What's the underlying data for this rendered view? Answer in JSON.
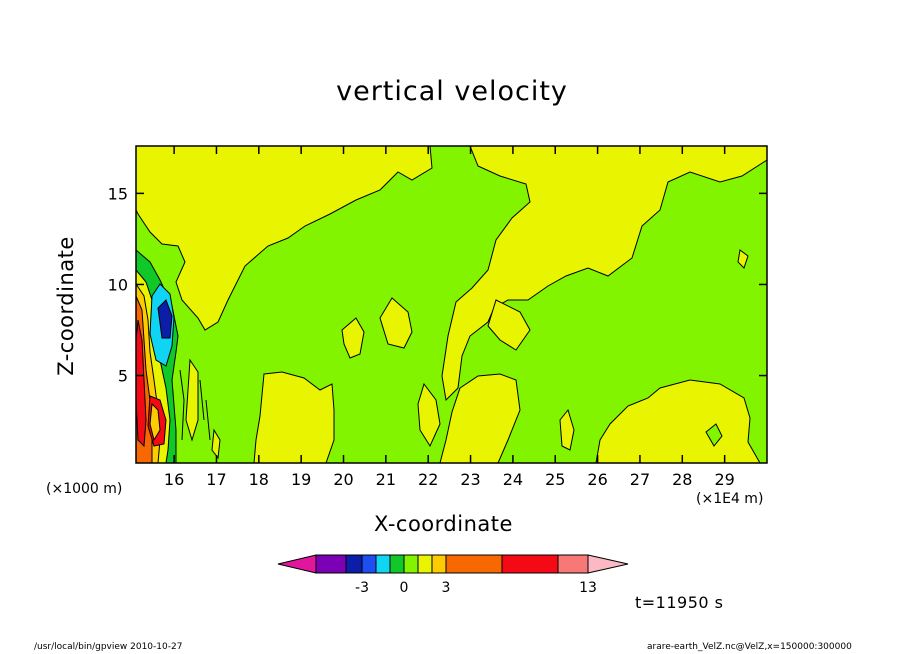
{
  "chart_data": {
    "type": "heatmap",
    "title": "vertical velocity",
    "xlabel": "X-coordinate",
    "ylabel": "Z-coordinate",
    "x_unit": "(×1E4 m)",
    "y_unit": "(×1000 m)",
    "xlim": [
      15.1,
      30.0
    ],
    "ylim": [
      0.2,
      17.6
    ],
    "x_ticks": [
      16,
      17,
      18,
      19,
      20,
      21,
      22,
      23,
      24,
      25,
      26,
      27,
      28,
      29
    ],
    "x_tick_labels": [
      "16",
      "17",
      "18",
      "19",
      "20",
      "21",
      "22",
      "23",
      "24",
      "25",
      "26",
      "27",
      "28",
      "29"
    ],
    "y_ticks": [
      5,
      10,
      15
    ],
    "y_tick_labels": [
      "5",
      "10",
      "15"
    ],
    "colorbar": {
      "colors": [
        "#e0169c",
        "#7c00b4",
        "#0c1ea8",
        "#1c4ef0",
        "#10d4f4",
        "#10c828",
        "#82f400",
        "#e8f400",
        "#fccc00",
        "#f86800",
        "#f40a14",
        "#f87878",
        "#fcb8c4"
      ],
      "tick_labels": [
        "-3",
        "0",
        "3",
        "13"
      ]
    },
    "time_label": "t=11950 s"
  },
  "footer": {
    "left": "/usr/local/bin/gpview   2010-10-27",
    "right": "arare-earth_VelZ.nc@VelZ,x=150000:300000"
  }
}
